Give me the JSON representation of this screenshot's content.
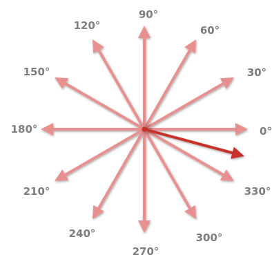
{
  "diagram": {
    "directions": [
      {
        "degrees": 0,
        "label": "0°"
      },
      {
        "degrees": 30,
        "label": "30°"
      },
      {
        "degrees": 60,
        "label": "60°"
      },
      {
        "degrees": 90,
        "label": "90°"
      },
      {
        "degrees": 120,
        "label": "120°"
      },
      {
        "degrees": 150,
        "label": "150°"
      },
      {
        "degrees": 180,
        "label": "180°"
      },
      {
        "degrees": 210,
        "label": "210°"
      },
      {
        "degrees": 240,
        "label": "240°"
      },
      {
        "degrees": 270,
        "label": "270°"
      },
      {
        "degrees": 300,
        "label": "300°"
      },
      {
        "degrees": 330,
        "label": "330°"
      }
    ],
    "highlighted_direction_degrees": 345,
    "colors": {
      "direction_arrow": "#e89090",
      "highlighted_arrow": "#c8302c",
      "label_text": "#7d7d7d",
      "background": "#ffffff"
    }
  }
}
